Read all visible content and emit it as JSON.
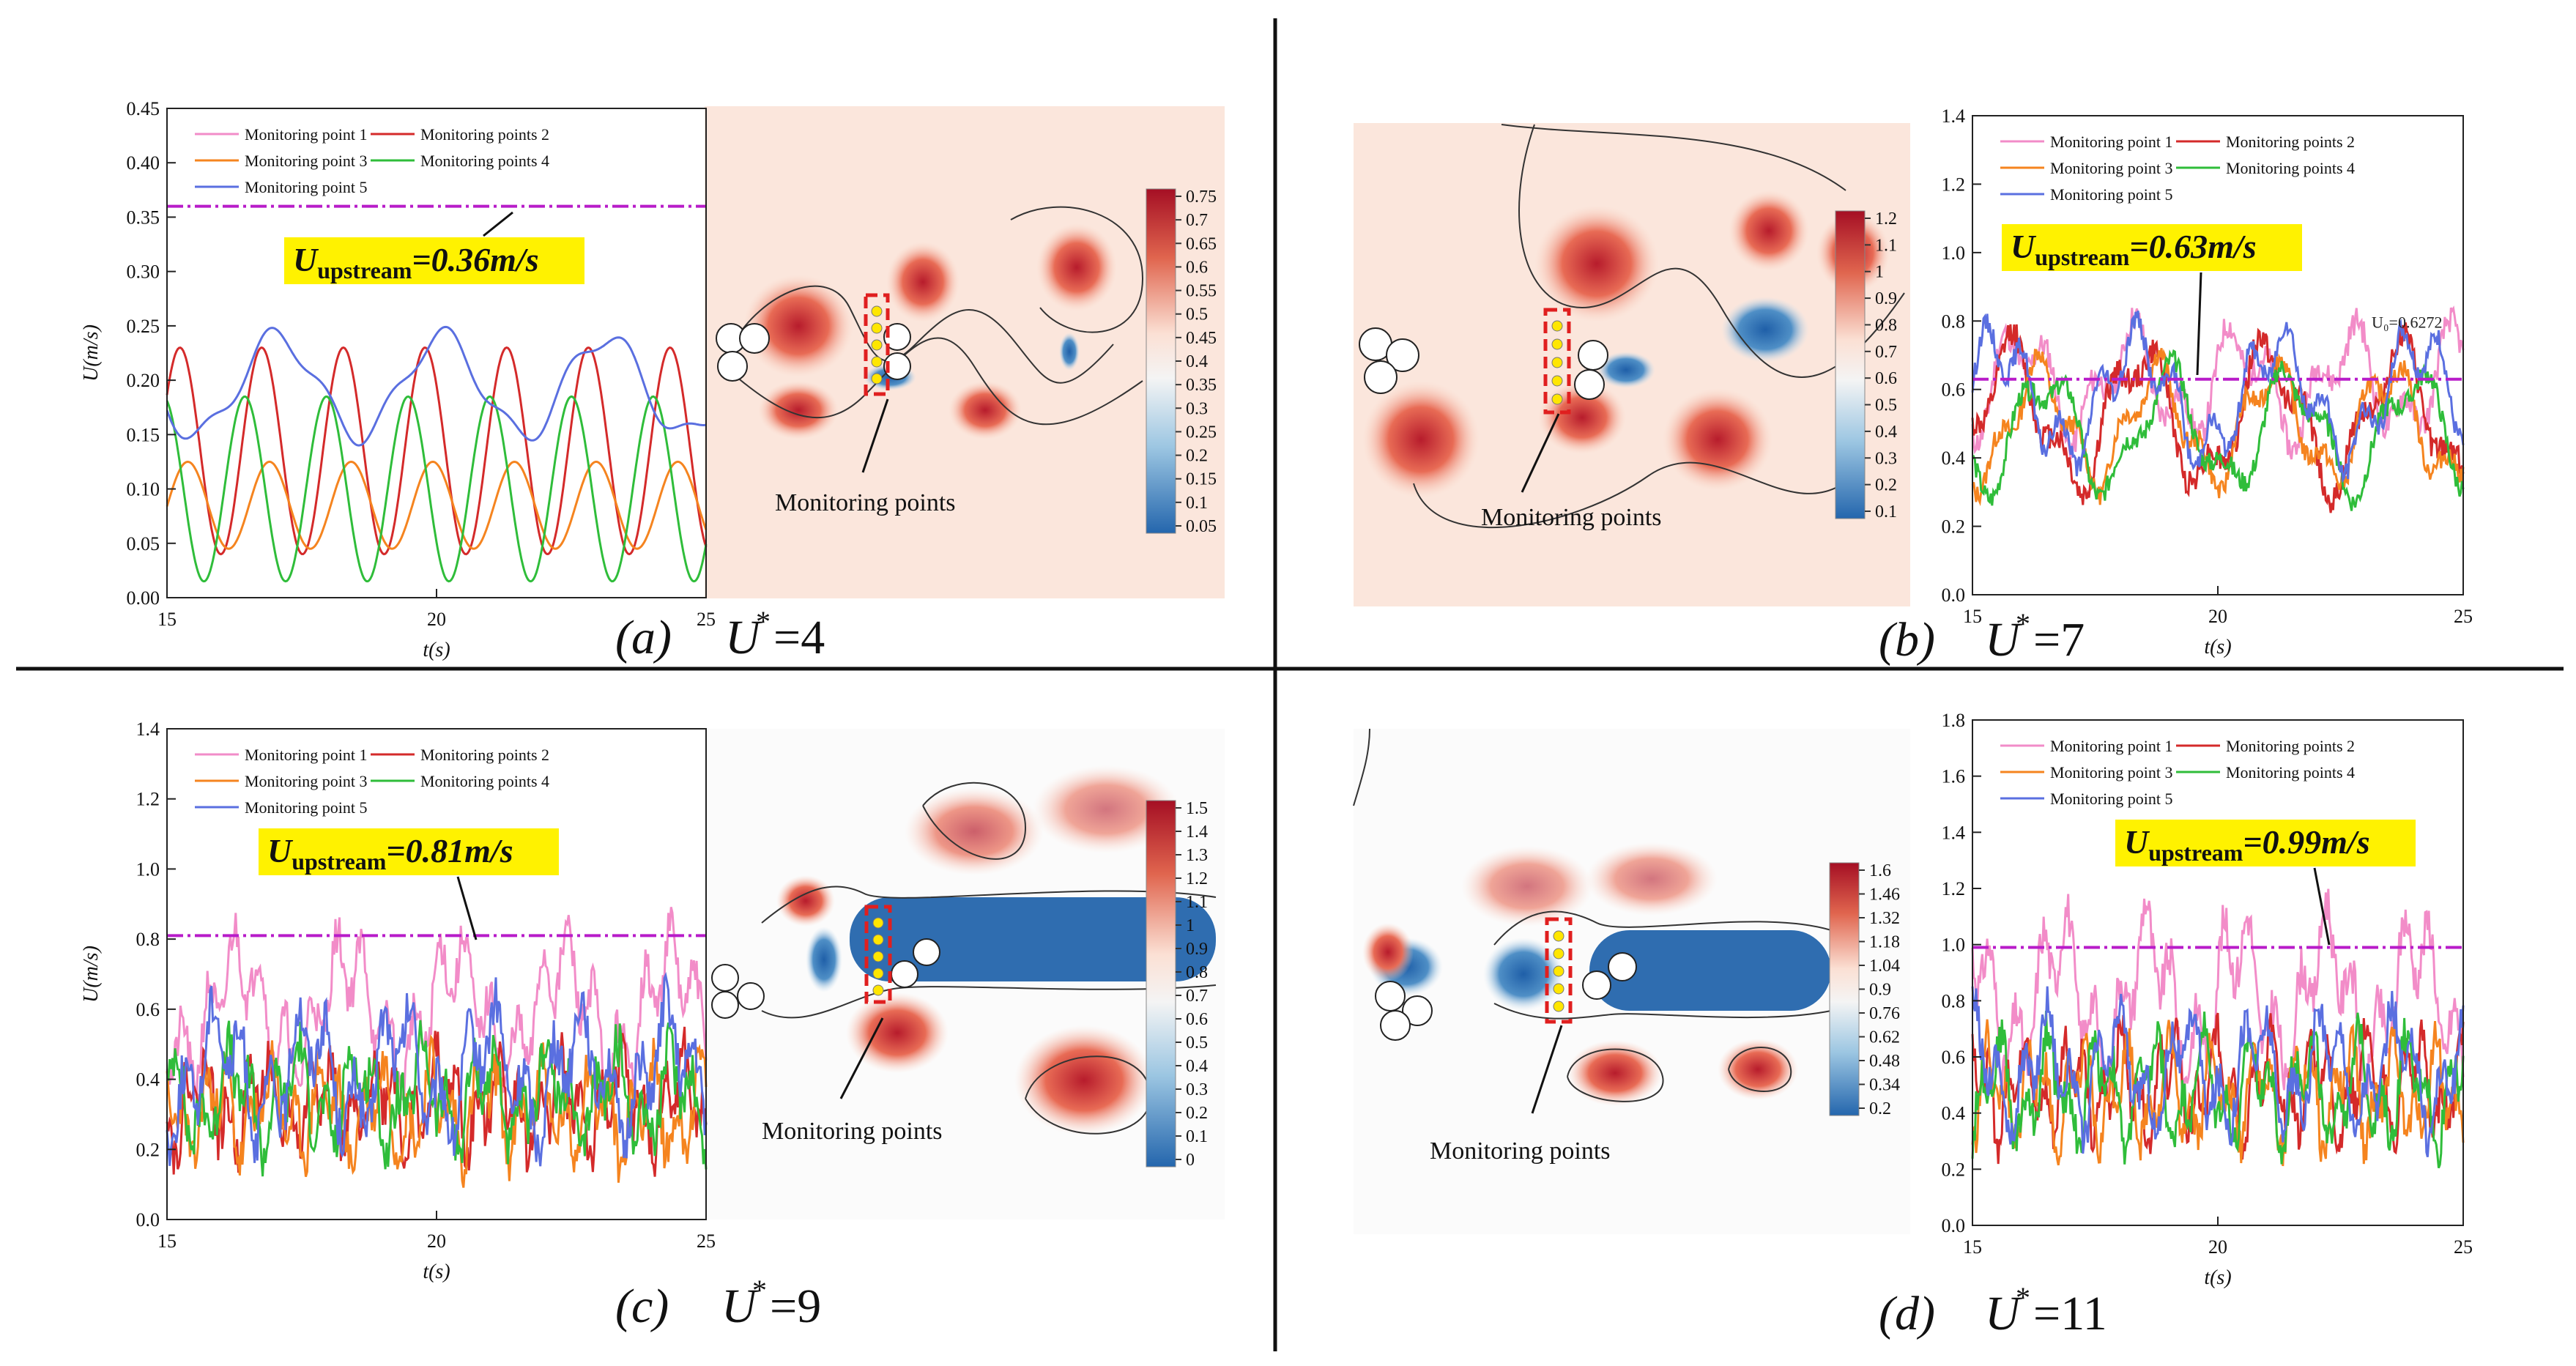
{
  "figure": {
    "panels_text": [
      {
        "letter": "(a)",
        "ustar_value": "=4"
      },
      {
        "letter": "(b)",
        "ustar_value": "=7"
      },
      {
        "letter": "(c)",
        "ustar_value": "=9"
      },
      {
        "letter": "(d)",
        "ustar_value": "=11"
      }
    ],
    "ustar_symbol": "U",
    "ustar_sup": "*",
    "monitoring_label": "Monitoring points",
    "colors": {
      "point1": "#f28cc8",
      "point2": "#d42a2a",
      "point3": "#f5841f",
      "point4": "#2fbd3a",
      "point5": "#5a6fe0",
      "upstream_line": "#b81cc9",
      "highlight": "#fff200"
    }
  },
  "chart_data": [
    {
      "type": "line",
      "panel": "a",
      "xlabel": "t(s)",
      "ylabel": "U(m/s)",
      "xlim": [
        15,
        25
      ],
      "ylim": [
        0,
        0.45
      ],
      "xticks": [
        15,
        20,
        25
      ],
      "xtick_labels": [
        "15",
        "20",
        "25"
      ],
      "yticks": [
        0,
        0.05,
        0.1,
        0.15,
        0.2,
        0.25,
        0.3,
        0.35,
        0.4,
        0.45
      ],
      "ytick_labels": [
        "0.00",
        "0.05",
        "0.10",
        "0.15",
        "0.20",
        "0.25",
        "0.30",
        "0.35",
        "0.40",
        "0.45"
      ],
      "legend": [
        "Monitoring point 1",
        "Monitoring points 2",
        "Monitoring point 3",
        "Monitoring points 4",
        "Monitoring point 5"
      ],
      "upstream": 0.36,
      "annotation": {
        "main": "U",
        "sub": "upstream",
        "value": "=0.36m/s"
      },
      "series": [
        {
          "name": "Monitoring points 2",
          "model": {
            "mean": 0.135,
            "amp": 0.095,
            "freq": 0.66,
            "phase": 1.2,
            "amp2": 0.0,
            "freq2": 1.0,
            "noise": 0.0,
            "seed": 2
          }
        },
        {
          "name": "Monitoring point 3",
          "model": {
            "mean": 0.085,
            "amp": 0.04,
            "freq": 0.66,
            "phase": 0.6,
            "amp2": 0.0,
            "freq2": 1.0,
            "noise": 0.0,
            "seed": 3
          }
        },
        {
          "name": "Monitoring points 4",
          "model": {
            "mean": 0.1,
            "amp": 0.085,
            "freq": 0.66,
            "phase": 2.5,
            "amp2": 0.0,
            "freq2": 1.0,
            "noise": 0.0,
            "seed": 4
          }
        },
        {
          "name": "Monitoring point 5",
          "model": {
            "mean": 0.195,
            "amp": 0.045,
            "freq": 0.33,
            "phase": 3.9,
            "amp2": 0.01,
            "freq2": 0.9,
            "noise": 0.0,
            "seed": 5
          }
        }
      ]
    },
    {
      "type": "line",
      "panel": "b",
      "xlabel": "t(s)",
      "ylabel": "",
      "xlim": [
        15,
        25
      ],
      "ylim": [
        0,
        1.4
      ],
      "xticks": [
        15,
        20,
        25
      ],
      "xtick_labels": [
        "15",
        "20",
        "25"
      ],
      "yticks": [
        0,
        0.2,
        0.4,
        0.6,
        0.8,
        1.0,
        1.2,
        1.4
      ],
      "ytick_labels": [
        "0.0",
        "0.2",
        "0.4",
        "0.6",
        "0.8",
        "1.0",
        "1.2",
        "1.4"
      ],
      "legend": [
        "Monitoring point 1",
        "Monitoring points 2",
        "Monitoring point 3",
        "Monitoring points 4",
        "Monitoring point 5"
      ],
      "upstream": 0.63,
      "annotation": {
        "main": "U",
        "sub": "upstream",
        "value": "=0.63m/s"
      },
      "extra_label": "U₀=0.6272",
      "series": [
        {
          "name": "Monitoring point 1",
          "model": {
            "mean": 0.62,
            "amp": 0.12,
            "freq": 0.45,
            "phase": 0.3,
            "amp2": 0.08,
            "freq2": 1.1,
            "noise": 0.04,
            "seed": 11
          }
        },
        {
          "name": "Monitoring points 2",
          "model": {
            "mean": 0.52,
            "amp": 0.18,
            "freq": 0.38,
            "phase": 1.6,
            "amp2": 0.07,
            "freq2": 1.0,
            "noise": 0.04,
            "seed": 12
          }
        },
        {
          "name": "Monitoring point 3",
          "model": {
            "mean": 0.5,
            "amp": 0.15,
            "freq": 0.42,
            "phase": 2.4,
            "amp2": 0.06,
            "freq2": 1.2,
            "noise": 0.03,
            "seed": 13
          }
        },
        {
          "name": "Monitoring points 4",
          "model": {
            "mean": 0.48,
            "amp": 0.15,
            "freq": 0.4,
            "phase": 4.1,
            "amp2": 0.06,
            "freq2": 0.95,
            "noise": 0.03,
            "seed": 14
          }
        },
        {
          "name": "Monitoring point 5",
          "model": {
            "mean": 0.58,
            "amp": 0.15,
            "freq": 0.35,
            "phase": 5.2,
            "amp2": 0.08,
            "freq2": 1.3,
            "noise": 0.03,
            "seed": 15
          }
        }
      ]
    },
    {
      "type": "line",
      "panel": "c",
      "xlabel": "t(s)",
      "ylabel": "U(m/s)",
      "xlim": [
        15,
        25
      ],
      "ylim": [
        0,
        1.4
      ],
      "xticks": [
        15,
        20,
        25
      ],
      "xtick_labels": [
        "15",
        "20",
        "25"
      ],
      "yticks": [
        0,
        0.2,
        0.4,
        0.6,
        0.8,
        1.0,
        1.2,
        1.4
      ],
      "ytick_labels": [
        "0.0",
        "0.2",
        "0.4",
        "0.6",
        "0.8",
        "1.0",
        "1.2",
        "1.4"
      ],
      "legend": [
        "Monitoring point 1",
        "Monitoring points 2",
        "Monitoring point 3",
        "Monitoring points 4",
        "Monitoring point 5"
      ],
      "upstream": 0.81,
      "annotation": {
        "main": "U",
        "sub": "upstream",
        "value": "=0.81m/s"
      },
      "series": [
        {
          "name": "Monitoring point 1",
          "model": {
            "mean": 0.6,
            "amp": 0.14,
            "freq": 0.5,
            "phase": 0.5,
            "amp2": 0.1,
            "freq2": 2.1,
            "noise": 0.06,
            "seed": 21
          }
        },
        {
          "name": "Monitoring points 2",
          "model": {
            "mean": 0.33,
            "amp": 0.08,
            "freq": 0.9,
            "phase": 1.1,
            "amp2": 0.08,
            "freq2": 2.6,
            "noise": 0.07,
            "seed": 22
          }
        },
        {
          "name": "Monitoring point 3",
          "model": {
            "mean": 0.31,
            "amp": 0.08,
            "freq": 1.0,
            "phase": 2.0,
            "amp2": 0.08,
            "freq2": 2.4,
            "noise": 0.07,
            "seed": 23
          }
        },
        {
          "name": "Monitoring points 4",
          "model": {
            "mean": 0.35,
            "amp": 0.09,
            "freq": 0.85,
            "phase": 3.0,
            "amp2": 0.08,
            "freq2": 2.2,
            "noise": 0.07,
            "seed": 24
          }
        },
        {
          "name": "Monitoring point 5",
          "model": {
            "mean": 0.42,
            "amp": 0.12,
            "freq": 0.6,
            "phase": 4.2,
            "amp2": 0.1,
            "freq2": 1.9,
            "noise": 0.07,
            "seed": 25
          }
        }
      ]
    },
    {
      "type": "line",
      "panel": "d",
      "xlabel": "t(s)",
      "ylabel": "",
      "xlim": [
        15,
        25
      ],
      "ylim": [
        0,
        1.8
      ],
      "xticks": [
        15,
        20,
        25
      ],
      "xtick_labels": [
        "15",
        "20",
        "25"
      ],
      "yticks": [
        0,
        0.2,
        0.4,
        0.6,
        0.8,
        1.0,
        1.2,
        1.4,
        1.6,
        1.8
      ],
      "ytick_labels": [
        "0.0",
        "0.2",
        "0.4",
        "0.6",
        "0.8",
        "1.0",
        "1.2",
        "1.4",
        "1.6",
        "1.8"
      ],
      "legend": [
        "Monitoring point 1",
        "Monitoring points 2",
        "Monitoring point 3",
        "Monitoring points 4",
        "Monitoring point 5"
      ],
      "upstream": 0.99,
      "annotation": {
        "main": "U",
        "sub": "upstream",
        "value": "=0.99m/s"
      },
      "series": [
        {
          "name": "Monitoring point 1",
          "model": {
            "mean": 0.82,
            "amp": 0.2,
            "freq": 0.55,
            "phase": 0.2,
            "amp2": 0.14,
            "freq2": 1.9,
            "noise": 0.08,
            "seed": 31
          }
        },
        {
          "name": "Monitoring points 2",
          "model": {
            "mean": 0.5,
            "amp": 0.12,
            "freq": 1.0,
            "phase": 1.4,
            "amp2": 0.1,
            "freq2": 2.6,
            "noise": 0.07,
            "seed": 32
          }
        },
        {
          "name": "Monitoring point 3",
          "model": {
            "mean": 0.47,
            "amp": 0.12,
            "freq": 1.1,
            "phase": 2.2,
            "amp2": 0.1,
            "freq2": 2.4,
            "noise": 0.07,
            "seed": 33
          }
        },
        {
          "name": "Monitoring points 4",
          "model": {
            "mean": 0.48,
            "amp": 0.13,
            "freq": 0.95,
            "phase": 3.3,
            "amp2": 0.1,
            "freq2": 2.2,
            "noise": 0.07,
            "seed": 34
          }
        },
        {
          "name": "Monitoring point 5",
          "model": {
            "mean": 0.55,
            "amp": 0.14,
            "freq": 0.7,
            "phase": 4.4,
            "amp2": 0.11,
            "freq2": 2.0,
            "noise": 0.07,
            "seed": 35
          }
        }
      ]
    },
    {
      "type": "heatmap",
      "panel": "a",
      "colorbar_label": "",
      "colorbar_ticks": [
        "0.75",
        "0.7",
        "0.65",
        "0.6",
        "0.55",
        "0.5",
        "0.45",
        "0.4",
        "0.35",
        "0.3",
        "0.25",
        "0.2",
        "0.15",
        "0.1",
        "0.05"
      ]
    },
    {
      "type": "heatmap",
      "panel": "b",
      "colorbar_label": "",
      "colorbar_ticks": [
        "1.2",
        "1.1",
        "1",
        "0.9",
        "0.8",
        "0.7",
        "0.6",
        "0.5",
        "0.4",
        "0.3",
        "0.2",
        "0.1"
      ]
    },
    {
      "type": "heatmap",
      "panel": "c",
      "colorbar_label": "",
      "colorbar_ticks": [
        "1.5",
        "1.4",
        "1.3",
        "1.2",
        "1.1",
        "1",
        "0.9",
        "0.8",
        "0.7",
        "0.6",
        "0.5",
        "0.4",
        "0.3",
        "0.2",
        "0.1",
        "0"
      ]
    },
    {
      "type": "heatmap",
      "panel": "d",
      "colorbar_label": "",
      "colorbar_ticks": [
        "1.6",
        "1.46",
        "1.32",
        "1.18",
        "1.04",
        "0.9",
        "0.76",
        "0.62",
        "0.48",
        "0.34",
        "0.2"
      ]
    }
  ]
}
